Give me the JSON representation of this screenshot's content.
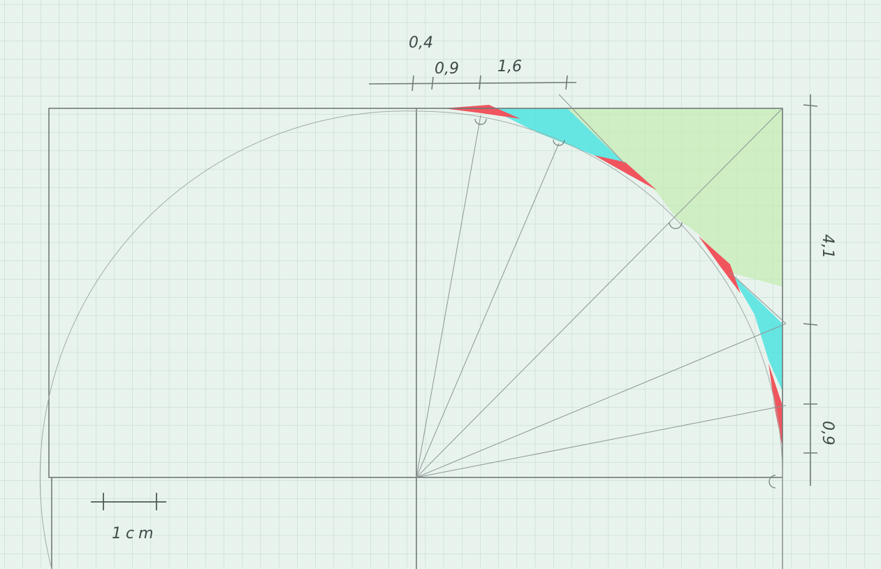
{
  "labels": {
    "top_04": "0,4",
    "top_09": "0,9",
    "top_16": "1,6",
    "right_41": "4,1",
    "right_09": "0,9",
    "scale": "1cm"
  },
  "colors": {
    "paper": "#e9f3ee",
    "grid": "#b9d4c8",
    "pencil": "#6f7a77",
    "cyan": "#4fe3e0",
    "red": "#f0555e",
    "green": "#c6ecb4"
  }
}
